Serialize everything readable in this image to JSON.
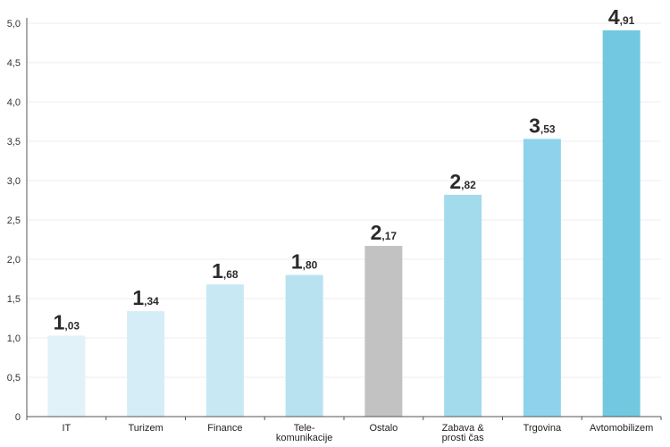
{
  "chart_data": {
    "type": "bar",
    "title": "",
    "xlabel": "",
    "ylabel": "",
    "ylim": [
      0,
      5
    ],
    "yticks": [
      "0",
      "0,5",
      "1,0",
      "1,5",
      "2,0",
      "2,5",
      "3,0",
      "3,5",
      "4,0",
      "4,5",
      "5,0"
    ],
    "grid": true,
    "categories": [
      [
        "IT"
      ],
      [
        "Turizem"
      ],
      [
        "Finance"
      ],
      [
        "Tele-",
        "komunikacije"
      ],
      [
        "Ostalo"
      ],
      [
        "Zabava &",
        "prosti čas"
      ],
      [
        "Trgovina"
      ],
      [
        "Avtomobilizem"
      ]
    ],
    "values": [
      1.03,
      1.34,
      1.68,
      1.8,
      2.17,
      2.82,
      3.53,
      4.91
    ],
    "value_labels": [
      {
        "int": "1",
        "dec": ",03"
      },
      {
        "int": "1",
        "dec": ",34"
      },
      {
        "int": "1",
        "dec": ",68"
      },
      {
        "int": "1",
        "dec": ",80"
      },
      {
        "int": "2",
        "dec": ",17"
      },
      {
        "int": "2",
        "dec": ",82"
      },
      {
        "int": "3",
        "dec": ",53"
      },
      {
        "int": "4",
        "dec": ",91"
      }
    ],
    "colors": [
      "#e1f2f9",
      "#d5edf6",
      "#c8e9f3",
      "#b8e2f0",
      "#c2c2c2",
      "#a3dbed",
      "#8ed3eb",
      "#72c8e0"
    ]
  }
}
